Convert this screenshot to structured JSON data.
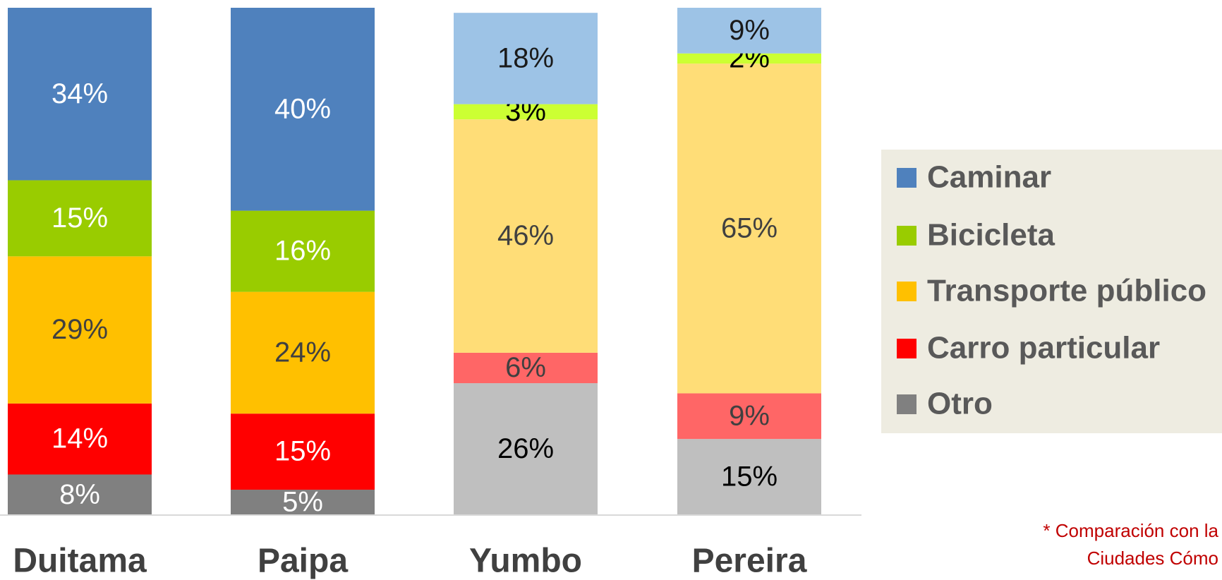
{
  "chart_data": {
    "type": "stacked_bar",
    "categories": [
      "Duitama",
      "Paipa",
      "Yumbo",
      "Pereira"
    ],
    "ylim": [
      0,
      100
    ],
    "series": [
      {
        "name": "Caminar",
        "color": "#4f81bd",
        "point_colors": [
          "#4f81bd",
          "#4f81bd",
          "#9dc3e6",
          "#9dc3e6"
        ],
        "label_colors": [
          "#ffffff",
          "#ffffff",
          "#1a1a1a",
          "#1a1a1a"
        ],
        "values": [
          34,
          40,
          18,
          9
        ],
        "value_labels": [
          "34%",
          "40%",
          "18%",
          "9%"
        ]
      },
      {
        "name": "Bicicleta",
        "color": "#99cc00",
        "point_colors": [
          "#99cc00",
          "#99cc00",
          "#ccff33",
          "#ccff33"
        ],
        "label_colors": [
          "#ffffff",
          "#ffffff",
          "#000000",
          "#000000"
        ],
        "values": [
          15,
          16,
          3,
          2
        ],
        "value_labels": [
          "15%",
          "16%",
          "3%",
          "2%"
        ]
      },
      {
        "name": "Transporte público",
        "color": "#ffc000",
        "point_colors": [
          "#ffc000",
          "#ffc000",
          "#ffdd77",
          "#ffdd77"
        ],
        "label_colors": [
          "#404040",
          "#404040",
          "#404040",
          "#404040"
        ],
        "values": [
          29,
          24,
          46,
          65
        ],
        "value_labels": [
          "29%",
          "24%",
          "46%",
          "65%"
        ]
      },
      {
        "name": "Carro particular",
        "color": "#ff0000",
        "point_colors": [
          "#ff0000",
          "#ff0000",
          "#ff6666",
          "#ff6666"
        ],
        "label_colors": [
          "#ffffff",
          "#ffffff",
          "#404040",
          "#404040"
        ],
        "values": [
          14,
          15,
          6,
          9
        ],
        "value_labels": [
          "14%",
          "15%",
          "6%",
          "9%"
        ]
      },
      {
        "name": "Otro",
        "color": "#808080",
        "point_colors": [
          "#808080",
          "#808080",
          "#bfbfbf",
          "#bfbfbf"
        ],
        "label_colors": [
          "#ffffff",
          "#ffffff",
          "#000000",
          "#000000"
        ],
        "values": [
          8,
          5,
          26,
          15
        ],
        "value_labels": [
          "8%",
          "5%",
          "26%",
          "15%"
        ]
      }
    ],
    "annotations": [
      "* Comparación con la",
      "Ciudades Cómo"
    ]
  }
}
